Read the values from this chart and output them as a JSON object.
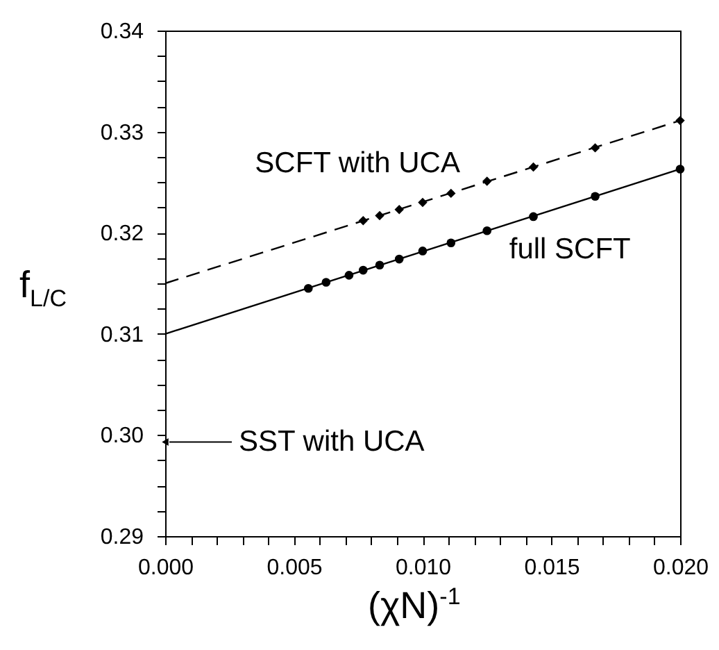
{
  "chart_data": {
    "type": "scatter",
    "xlabel": "(χN)$^{-1}$",
    "ylabel": "f$_{L/C}$",
    "xlim": [
      0,
      0.02
    ],
    "ylim": [
      0.29,
      0.34
    ],
    "xticks": [
      {
        "value": 0,
        "label": "0.000"
      },
      {
        "value": 0.001,
        "label": null
      },
      {
        "value": 0.002,
        "label": null
      },
      {
        "value": 0.003,
        "label": null
      },
      {
        "value": 0.004,
        "label": null
      },
      {
        "value": 0.005,
        "label": "0.005"
      },
      {
        "value": 0.006,
        "label": null
      },
      {
        "value": 0.007,
        "label": null
      },
      {
        "value": 0.008,
        "label": null
      },
      {
        "value": 0.009,
        "label": null
      },
      {
        "value": 0.01,
        "label": "0.010"
      },
      {
        "value": 0.011,
        "label": null
      },
      {
        "value": 0.012,
        "label": null
      },
      {
        "value": 0.013,
        "label": null
      },
      {
        "value": 0.014,
        "label": null
      },
      {
        "value": 0.015,
        "label": "0.015"
      },
      {
        "value": 0.016,
        "label": null
      },
      {
        "value": 0.017,
        "label": null
      },
      {
        "value": 0.018,
        "label": null
      },
      {
        "value": 0.019,
        "label": null
      },
      {
        "value": 0.02,
        "label": "0.020"
      }
    ],
    "yticks": [
      {
        "value": 0.29,
        "label": "0.29"
      },
      {
        "value": 0.2925,
        "label": null
      },
      {
        "value": 0.295,
        "label": null
      },
      {
        "value": 0.2975,
        "label": null
      },
      {
        "value": 0.3,
        "label": "0.30"
      },
      {
        "value": 0.3025,
        "label": null
      },
      {
        "value": 0.305,
        "label": null
      },
      {
        "value": 0.3075,
        "label": null
      },
      {
        "value": 0.31,
        "label": "0.31"
      },
      {
        "value": 0.3125,
        "label": null
      },
      {
        "value": 0.315,
        "label": null
      },
      {
        "value": 0.3175,
        "label": null
      },
      {
        "value": 0.32,
        "label": "0.32"
      },
      {
        "value": 0.3225,
        "label": null
      },
      {
        "value": 0.325,
        "label": null
      },
      {
        "value": 0.3275,
        "label": null
      },
      {
        "value": 0.33,
        "label": "0.33"
      },
      {
        "value": 0.3325,
        "label": null
      },
      {
        "value": 0.335,
        "label": null
      },
      {
        "value": 0.3375,
        "label": null
      },
      {
        "value": 0.34,
        "label": "0.34"
      }
    ],
    "grid": false,
    "series": [
      {
        "name": "SCFT with UCA",
        "type": "scatter",
        "marker": "diamond",
        "color": "#000000",
        "x": [
          0.00769,
          0.00833,
          0.00909,
          0.01,
          0.0111,
          0.0125,
          0.0143,
          0.0167,
          0.02
        ],
        "values": [
          0.3212,
          0.3217,
          0.3223,
          0.323,
          0.3239,
          0.3251,
          0.3265,
          0.3284,
          0.3311
        ]
      },
      {
        "name": "full SCFT",
        "type": "scatter",
        "marker": "circle",
        "color": "#000000",
        "x": [
          0.00556,
          0.00625,
          0.00714,
          0.00769,
          0.00833,
          0.00909,
          0.01,
          0.0111,
          0.0125,
          0.0143,
          0.0167,
          0.02
        ],
        "values": [
          0.3145,
          0.3151,
          0.3158,
          0.3163,
          0.3168,
          0.3174,
          0.3182,
          0.319,
          0.3202,
          0.3216,
          0.3236,
          0.3263
        ]
      },
      {
        "name": "SST with UCA",
        "type": "scatter",
        "color": "#000000",
        "x": [
          0
        ],
        "values": [
          0.2993
        ]
      },
      {
        "type": "line",
        "line_style": "dashed",
        "color": "#000000",
        "x": [
          0,
          0.02
        ],
        "values": [
          0.315,
          0.3311
        ]
      },
      {
        "type": "line",
        "line_style": "solid",
        "color": "#000000",
        "x": [
          0,
          0.02
        ],
        "values": [
          0.31,
          0.3263
        ]
      }
    ]
  }
}
